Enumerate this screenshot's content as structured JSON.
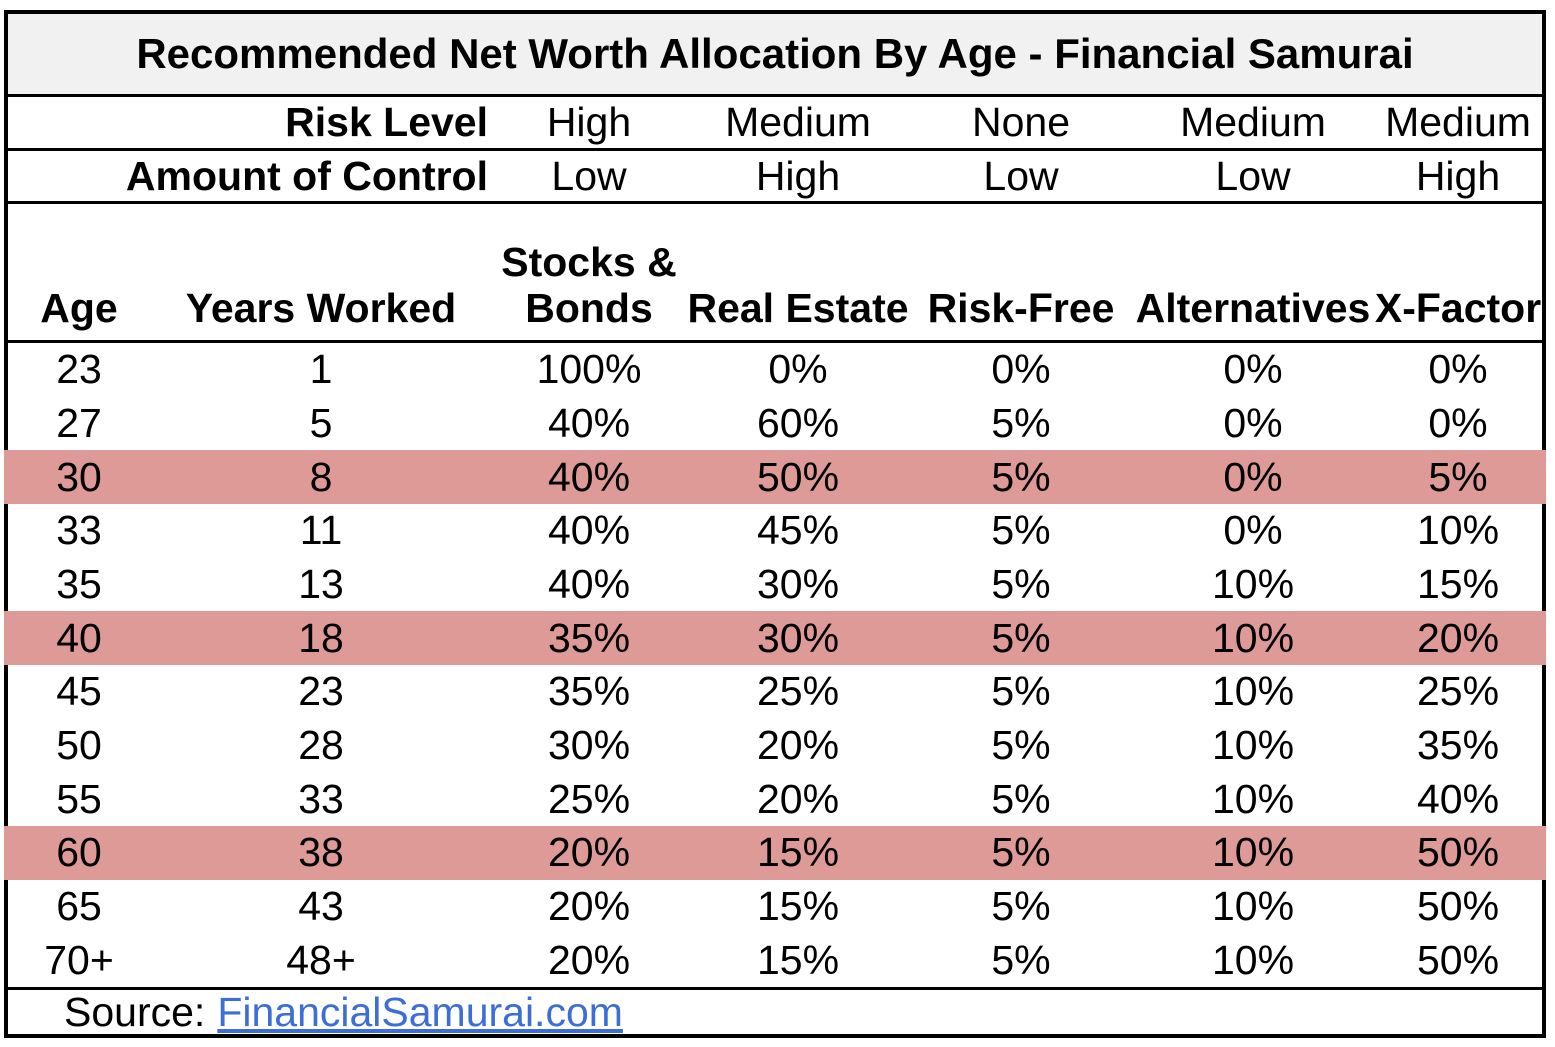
{
  "title": "Recommended Net Worth Allocation By Age - Financial Samurai",
  "meta_rows": [
    {
      "label": "Risk Level",
      "values": [
        "High",
        "Medium",
        "None",
        "Medium",
        "Medium"
      ]
    },
    {
      "label": "Amount of Control",
      "values": [
        "Low",
        "High",
        "Low",
        "Low",
        "High"
      ]
    }
  ],
  "table": {
    "columns": [
      "Age",
      "Years Worked",
      "Stocks & Bonds",
      "Real Estate",
      "Risk-Free",
      "Alternatives",
      "X-Factor"
    ],
    "rows": [
      {
        "cells": [
          "23",
          "1",
          "100%",
          "0%",
          "0%",
          "0%",
          "0%"
        ],
        "highlighted": false
      },
      {
        "cells": [
          "27",
          "5",
          "40%",
          "60%",
          "5%",
          "0%",
          "0%"
        ],
        "highlighted": false
      },
      {
        "cells": [
          "30",
          "8",
          "40%",
          "50%",
          "5%",
          "0%",
          "5%"
        ],
        "highlighted": true
      },
      {
        "cells": [
          "33",
          "11",
          "40%",
          "45%",
          "5%",
          "0%",
          "10%"
        ],
        "highlighted": false
      },
      {
        "cells": [
          "35",
          "13",
          "40%",
          "30%",
          "5%",
          "10%",
          "15%"
        ],
        "highlighted": false
      },
      {
        "cells": [
          "40",
          "18",
          "35%",
          "30%",
          "5%",
          "10%",
          "20%"
        ],
        "highlighted": true
      },
      {
        "cells": [
          "45",
          "23",
          "35%",
          "25%",
          "5%",
          "10%",
          "25%"
        ],
        "highlighted": false
      },
      {
        "cells": [
          "50",
          "28",
          "30%",
          "20%",
          "5%",
          "10%",
          "35%"
        ],
        "highlighted": false
      },
      {
        "cells": [
          "55",
          "33",
          "25%",
          "20%",
          "5%",
          "10%",
          "40%"
        ],
        "highlighted": false
      },
      {
        "cells": [
          "60",
          "38",
          "20%",
          "15%",
          "5%",
          "10%",
          "50%"
        ],
        "highlighted": true
      },
      {
        "cells": [
          "65",
          "43",
          "20%",
          "15%",
          "5%",
          "10%",
          "50%"
        ],
        "highlighted": false
      },
      {
        "cells": [
          "70+",
          "48+",
          "20%",
          "15%",
          "5%",
          "10%",
          "50%"
        ],
        "highlighted": false
      }
    ]
  },
  "source": {
    "label": "Source:",
    "link_text": "FinancialSamurai.com"
  },
  "colors": {
    "highlight": "#DE9A96",
    "title_bg": "#F1F1F1",
    "link": "#3D6DD6",
    "border": "#000000"
  },
  "chart_data": {
    "type": "table",
    "title": "Recommended Net Worth Allocation By Age - Financial Samurai",
    "columns": [
      "Age",
      "Years Worked",
      "Stocks & Bonds",
      "Real Estate",
      "Risk-Free",
      "Alternatives",
      "X-Factor"
    ],
    "risk_level_by_asset": {
      "Stocks & Bonds": "High",
      "Real Estate": "Medium",
      "Risk-Free": "None",
      "Alternatives": "Medium",
      "X-Factor": "Medium"
    },
    "amount_of_control_by_asset": {
      "Stocks & Bonds": "Low",
      "Real Estate": "High",
      "Risk-Free": "Low",
      "Alternatives": "Low",
      "X-Factor": "High"
    },
    "rows": [
      [
        "23",
        "1",
        "100%",
        "0%",
        "0%",
        "0%",
        "0%"
      ],
      [
        "27",
        "5",
        "40%",
        "60%",
        "5%",
        "0%",
        "0%"
      ],
      [
        "30",
        "8",
        "40%",
        "50%",
        "5%",
        "0%",
        "5%"
      ],
      [
        "33",
        "11",
        "40%",
        "45%",
        "5%",
        "0%",
        "10%"
      ],
      [
        "35",
        "13",
        "40%",
        "30%",
        "5%",
        "10%",
        "15%"
      ],
      [
        "40",
        "18",
        "35%",
        "30%",
        "5%",
        "10%",
        "20%"
      ],
      [
        "45",
        "23",
        "35%",
        "25%",
        "5%",
        "10%",
        "25%"
      ],
      [
        "50",
        "28",
        "30%",
        "20%",
        "5%",
        "10%",
        "35%"
      ],
      [
        "55",
        "33",
        "25%",
        "20%",
        "5%",
        "10%",
        "40%"
      ],
      [
        "60",
        "38",
        "20%",
        "15%",
        "5%",
        "10%",
        "50%"
      ],
      [
        "65",
        "43",
        "20%",
        "15%",
        "5%",
        "10%",
        "50%"
      ],
      [
        "70+",
        "48+",
        "20%",
        "15%",
        "5%",
        "10%",
        "50%"
      ]
    ],
    "highlighted_ages": [
      "30",
      "40",
      "60"
    ],
    "source": "FinancialSamurai.com"
  }
}
